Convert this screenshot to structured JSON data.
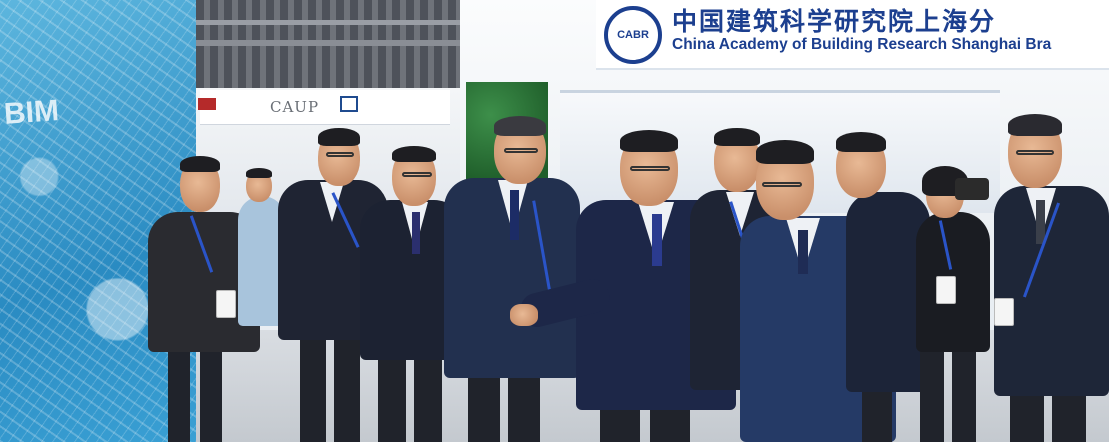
{
  "banner": {
    "logo_text": "CABR",
    "title_cn": "中国建筑科学研究院上海分",
    "title_en": "China Academy of Building Research Shanghai Bra"
  },
  "side_booth": {
    "sign_text": "CAUP"
  },
  "display_wall": {
    "text": "BIM"
  },
  "colors": {
    "banner_blue": "#1c3f8f",
    "wall_blue": "#2a8bc2",
    "suit_navy": "#1f2a4a",
    "lanyard_blue": "#2a54c8"
  }
}
